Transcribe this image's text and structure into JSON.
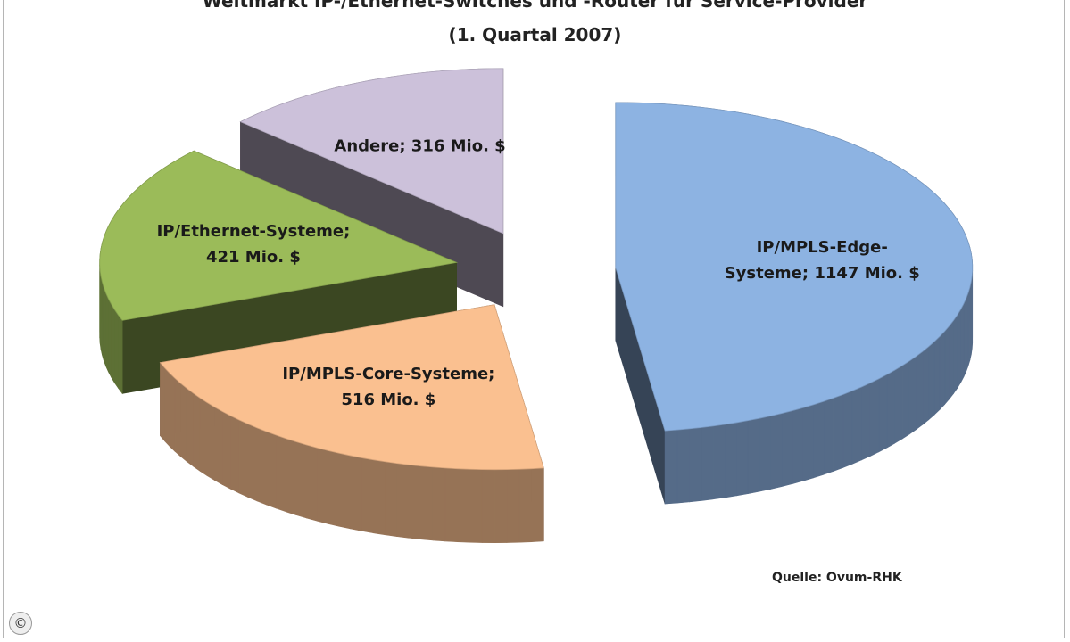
{
  "chart_data": {
    "type": "pie3d",
    "title": "Weltmarkt IP-/Ethernet-Switches und -Router für Service-Provider",
    "subtitle": "(1. Quartal 2007)",
    "values": [
      1147,
      516,
      421,
      316
    ],
    "value_labels": [
      "IP/MPLS-Edge-Systeme; 1147 Mio. $",
      "IP/MPLS-Core-Systeme; 516 Mio. $",
      "IP/Ethernet-Systeme; 421 Mio. $",
      "Andere; 316 Mio. $"
    ],
    "colors": [
      "#8db3e2",
      "#fac090",
      "#9bbb59",
      "#ccc1da"
    ],
    "source": "Quelle: Ovum-RHK"
  },
  "copyright": "©"
}
